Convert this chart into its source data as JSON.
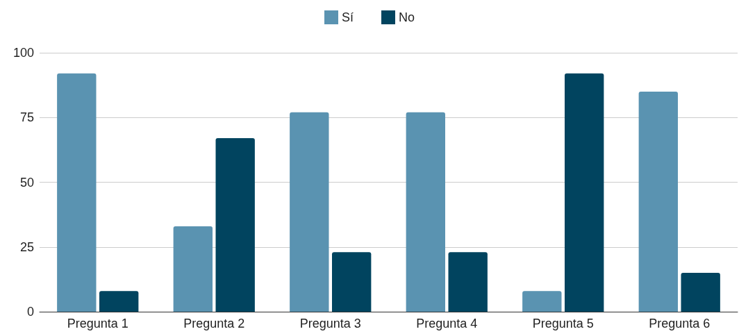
{
  "chart_data": {
    "type": "bar",
    "categories": [
      "Pregunta 1",
      "Pregunta 2",
      "Pregunta 3",
      "Pregunta 4",
      "Pregunta 5",
      "Pregunta 6"
    ],
    "series": [
      {
        "name": "Sí",
        "color": "#5a93b1",
        "values": [
          92,
          33,
          77,
          77,
          8,
          85
        ]
      },
      {
        "name": "No",
        "color": "#01445f",
        "values": [
          8,
          67,
          23,
          23,
          92,
          15
        ]
      }
    ],
    "ylim": [
      0,
      100
    ],
    "yticks": [
      0,
      25,
      50,
      75,
      100
    ],
    "grid": "y",
    "legend": "top"
  }
}
